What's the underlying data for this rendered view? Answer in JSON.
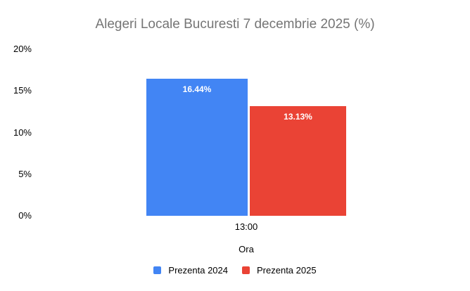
{
  "chart_data": {
    "type": "bar",
    "title": "Alegeri Locale Bucuresti 7 decembrie 2025 (%)",
    "categories": [
      "13:00"
    ],
    "series": [
      {
        "name": "Prezenta 2024",
        "values": [
          16.44
        ],
        "data_label": "16.44%",
        "color": "#4285F4"
      },
      {
        "name": "Prezenta 2025",
        "values": [
          13.13
        ],
        "data_label": "13.13%",
        "color": "#EA4335"
      }
    ],
    "xlabel": "Ora",
    "ylabel": "",
    "ylim": [
      0,
      20
    ],
    "yticks": [
      0,
      5,
      10,
      15,
      20
    ],
    "ytick_labels": [
      "0%",
      "5%",
      "10%",
      "15%",
      "20%"
    ],
    "grid": false,
    "legend_position": "bottom",
    "data_labels": true
  },
  "colors": {
    "background": "#ffffff",
    "title_text": "#757575",
    "axis_text": "#000000",
    "bar_label_text": "#ffffff",
    "series_blue": "#4285F4",
    "series_red": "#EA4335"
  }
}
